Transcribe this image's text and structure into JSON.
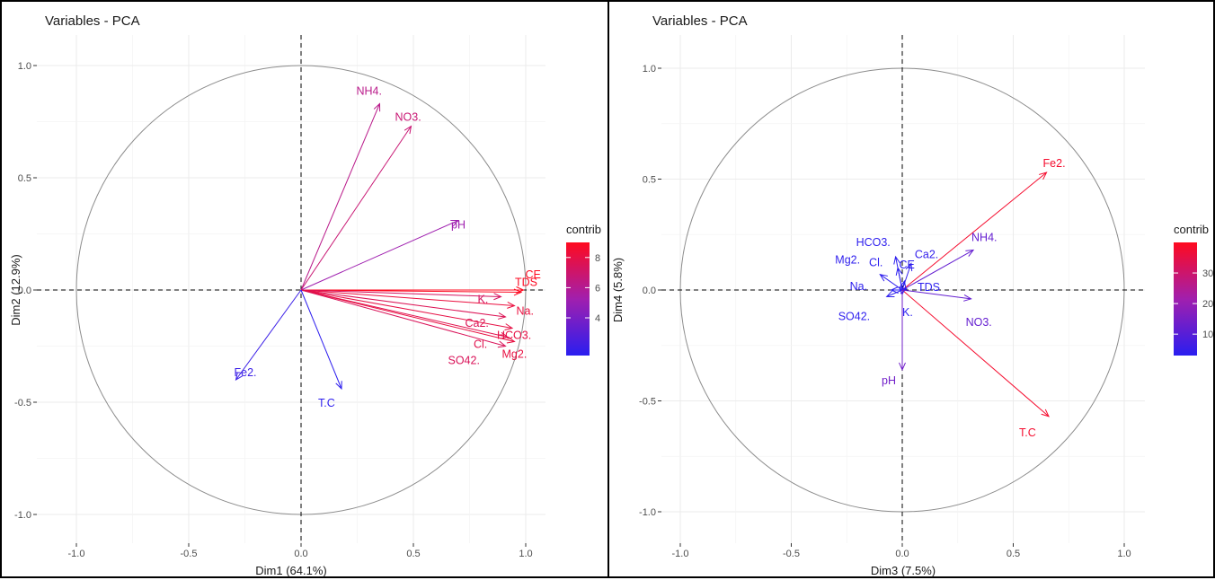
{
  "chart_data": [
    {
      "type": "scatter",
      "title": "Variables - PCA",
      "xlabel": "Dim1 (64.1%)",
      "ylabel": "Dim2 (12.9%)",
      "xlim": [
        -1.1,
        1.1
      ],
      "ylim": [
        -1.1,
        1.1
      ],
      "x_ticks": [
        "-1.0",
        "-0.5",
        "0.0",
        "0.5",
        "1.0"
      ],
      "y_ticks": [
        "1.0",
        "0.5",
        "0.0",
        "-0.5",
        "-1.0"
      ],
      "legend_title": "contrib",
      "legend_placement": "right",
      "legend_ticks": [
        "8",
        "6",
        "4"
      ],
      "contrib_range": [
        1.5,
        9
      ],
      "colors": {
        "low": "#2a1ef0",
        "mid": "#a11fae",
        "high": "#ff0a1f"
      },
      "grid": true,
      "unit_circle": true,
      "variables": [
        {
          "label": "NH4.",
          "x": 0.35,
          "y": 0.83,
          "contrib": 6.2
        },
        {
          "label": "NO3.",
          "x": 0.49,
          "y": 0.73,
          "contrib": 6.8
        },
        {
          "label": "pH",
          "x": 0.7,
          "y": 0.31,
          "contrib": 5.2
        },
        {
          "label": "CE",
          "x": 0.99,
          "y": 0.0,
          "contrib": 9.0
        },
        {
          "label": "TDS",
          "x": 0.98,
          "y": -0.01,
          "contrib": 8.9
        },
        {
          "label": "K.",
          "x": 0.89,
          "y": -0.03,
          "contrib": 7.3
        },
        {
          "label": "Na.",
          "x": 0.95,
          "y": -0.07,
          "contrib": 8.2
        },
        {
          "label": "Ca2.",
          "x": 0.91,
          "y": -0.12,
          "contrib": 7.6
        },
        {
          "label": "HCO3.",
          "x": 0.94,
          "y": -0.17,
          "contrib": 8.0
        },
        {
          "label": "Cl.",
          "x": 0.92,
          "y": -0.21,
          "contrib": 7.8
        },
        {
          "label": "Mg2.",
          "x": 0.95,
          "y": -0.23,
          "contrib": 8.1
        },
        {
          "label": "SO42.",
          "x": 0.91,
          "y": -0.25,
          "contrib": 7.5
        },
        {
          "label": "Fe2.",
          "x": -0.29,
          "y": -0.4,
          "contrib": 2.0
        },
        {
          "label": "T.C",
          "x": 0.18,
          "y": -0.44,
          "contrib": 1.6
        }
      ]
    },
    {
      "type": "scatter",
      "title": "Variables - PCA",
      "xlabel": "Dim3 (7.5%)",
      "ylabel": "Dim4 (5.8%)",
      "xlim": [
        -1.1,
        1.1
      ],
      "ylim": [
        -1.1,
        1.1
      ],
      "x_ticks": [
        "-1.0",
        "-0.5",
        "0.0",
        "0.5",
        "1.0"
      ],
      "y_ticks": [
        "1.0",
        "0.5",
        "0.0",
        "-0.5",
        "-1.0"
      ],
      "legend_title": "contrib",
      "legend_placement": "right",
      "legend_ticks": [
        "30",
        "20",
        "10"
      ],
      "contrib_range": [
        3,
        40
      ],
      "colors": {
        "low": "#2a1ef0",
        "mid": "#a11fae",
        "high": "#ff0a1f"
      },
      "grid": true,
      "unit_circle": true,
      "variables": [
        {
          "label": "Fe2.",
          "x": 0.65,
          "y": 0.53,
          "contrib": 38
        },
        {
          "label": "T.C",
          "x": 0.66,
          "y": -0.57,
          "contrib": 38
        },
        {
          "label": "HCO3.",
          "x": -0.03,
          "y": 0.15,
          "contrib": 3.5
        },
        {
          "label": "Cl.",
          "x": -0.02,
          "y": 0.1,
          "contrib": 3.2
        },
        {
          "label": "Ca2.",
          "x": 0.04,
          "y": 0.12,
          "contrib": 4.2
        },
        {
          "label": "NH4.",
          "x": 0.32,
          "y": 0.18,
          "contrib": 12
        },
        {
          "label": "Mg2.",
          "x": -0.1,
          "y": 0.07,
          "contrib": 3.6
        },
        {
          "label": "CE",
          "x": 0.01,
          "y": 0.04,
          "contrib": 3.2
        },
        {
          "label": "Na.",
          "x": -0.05,
          "y": 0.0,
          "contrib": 3.2
        },
        {
          "label": "TDS",
          "x": 0.02,
          "y": 0.005,
          "contrib": 3.2
        },
        {
          "label": "SO42.",
          "x": -0.07,
          "y": -0.03,
          "contrib": 3.4
        },
        {
          "label": "K.",
          "x": 0.0,
          "y": -0.02,
          "contrib": 3.1
        },
        {
          "label": "NO3.",
          "x": 0.31,
          "y": -0.04,
          "contrib": 12
        },
        {
          "label": "pH",
          "x": 0.0,
          "y": -0.36,
          "contrib": 14
        }
      ]
    }
  ]
}
